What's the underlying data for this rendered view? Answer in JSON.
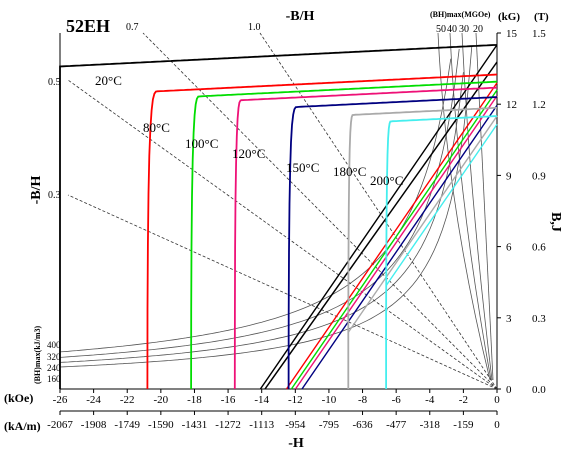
{
  "chart_data": {
    "type": "line",
    "title": "52EH",
    "top_axis_label": "-B/H",
    "x_axis": {
      "label": "-H",
      "unit_kOe": "(kOe)",
      "unit_kAm": "(kA/m)",
      "ticks_kOe": [
        "-26",
        "-24",
        "-22",
        "-20",
        "-18",
        "-16",
        "-14",
        "-12",
        "-10",
        "-8",
        "-6",
        "-4",
        "-2",
        "0"
      ],
      "ticks_kAm": [
        "-2067",
        "-1908",
        "-1749",
        "-1590",
        "-1431",
        "-1272",
        "-1113",
        "-954",
        "-795",
        "-636",
        "-477",
        "-318",
        "-159",
        "0"
      ],
      "range_kOe": [
        -26,
        0
      ]
    },
    "y_axis_left": {
      "label": "-B/H",
      "bh_unit_label": "(BH)max(kJ/m3)",
      "bh_ticks": [
        "400",
        "320",
        "240",
        "160"
      ]
    },
    "y_axis_right": {
      "label": "B,J",
      "unit_kG": "(kG)",
      "unit_T": "(T)",
      "ticks_kG": [
        "0",
        "3",
        "6",
        "9",
        "12",
        "15"
      ],
      "ticks_T": [
        "0.0",
        "0.3",
        "0.6",
        "0.9",
        "1.2",
        "1.5"
      ],
      "range_kG": [
        0,
        15
      ]
    },
    "top_bh_label": "(BH)max(MGOe)",
    "top_bh_ticks": [
      "50",
      "40",
      "30",
      "20"
    ],
    "load_lines": [
      {
        "label": "0.7",
        "slope": 0.7
      },
      {
        "label": "1.0",
        "slope": 1.0
      },
      {
        "label": "0.5",
        "slope": 0.5
      },
      {
        "label": "0.3",
        "slope": 0.3
      }
    ],
    "series": [
      {
        "name": "20°C",
        "color": "#000000",
        "Br": 14.5,
        "knee_H": -26.0,
        "Hcj": -26.6
      },
      {
        "name": "80°C",
        "color": "#ff0000",
        "Br": 13.25,
        "knee_H": -20.2,
        "Hcj": -20.8
      },
      {
        "name": "100°C",
        "color": "#00dd00",
        "Br": 12.95,
        "knee_H": -17.7,
        "Hcj": -18.2
      },
      {
        "name": "120°C",
        "color": "#ee1177",
        "Br": 12.7,
        "knee_H": -15.2,
        "Hcj": -15.6
      },
      {
        "name": "150°C",
        "color": "#000080",
        "Br": 12.3,
        "knee_H": -11.9,
        "Hcj": -12.4
      },
      {
        "name": "180°C",
        "color": "#aaaaaa",
        "Br": 11.85,
        "knee_H": -8.55,
        "Hcj": -8.85
      },
      {
        "name": "200°C",
        "color": "#44eeee",
        "Br": 11.5,
        "knee_H": -6.3,
        "Hcj": -6.6
      }
    ]
  }
}
